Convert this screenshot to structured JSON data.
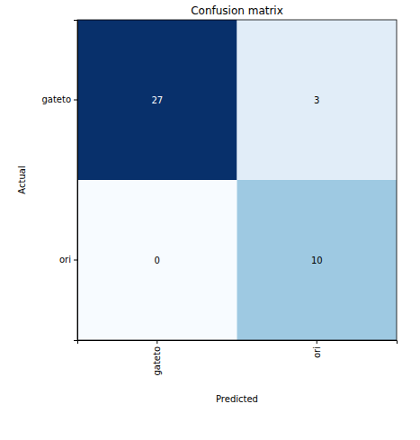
{
  "chart_data": {
    "type": "heatmap",
    "title": "Confusion matrix",
    "x_label": "Predicted",
    "y_label": "Actual",
    "x_categories": [
      "gateto",
      "ori"
    ],
    "y_categories": [
      "gateto",
      "ori"
    ],
    "cells": [
      [
        27,
        3
      ],
      [
        0,
        10
      ]
    ],
    "color": "Blues",
    "data_labels": true
  }
}
